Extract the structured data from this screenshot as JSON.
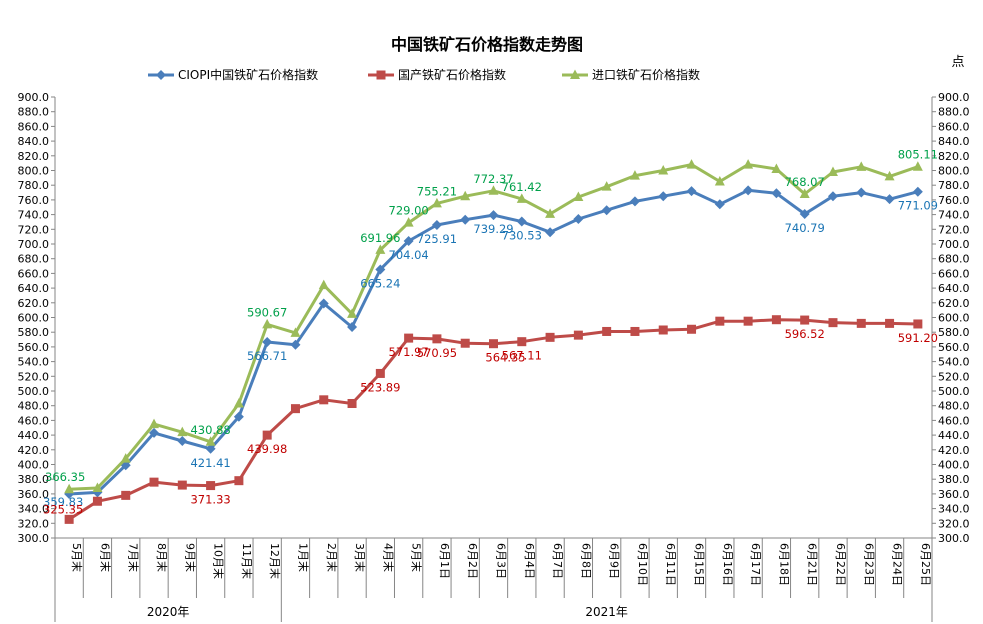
{
  "chart_data": {
    "type": "line",
    "title": "中国铁矿石价格指数走势图",
    "unit": "点",
    "ylim": [
      300,
      900
    ],
    "ytick_step": 20,
    "yticks": [
      "300.0",
      "320.0",
      "340.0",
      "360.0",
      "380.0",
      "400.0",
      "420.0",
      "440.0",
      "460.0",
      "480.0",
      "500.0",
      "520.0",
      "540.0",
      "560.0",
      "580.0",
      "600.0",
      "620.0",
      "640.0",
      "660.0",
      "680.0",
      "700.0",
      "720.0",
      "740.0",
      "760.0",
      "780.0",
      "800.0",
      "820.0",
      "840.0",
      "860.0",
      "880.0",
      "900.0"
    ],
    "categories": [
      "5月末",
      "6月末",
      "7月末",
      "8月末",
      "9月末",
      "10月末",
      "11月末",
      "12月末",
      "1月末",
      "2月末",
      "3月末",
      "4月末",
      "5月末",
      "6月1日",
      "6月2日",
      "6月3日",
      "6月4日",
      "6月7日",
      "6月8日",
      "6月9日",
      "6月10日",
      "6月11日",
      "6月15日",
      "6月16日",
      "6月17日",
      "6月18日",
      "6月21日",
      "6月22日",
      "6月23日",
      "6月24日",
      "6月25日"
    ],
    "groups": [
      {
        "label": "2020年",
        "start": 0,
        "end": 7
      },
      {
        "label": "2021年",
        "start": 8,
        "end": 30
      }
    ],
    "legend_position": "top",
    "grid": false,
    "series": [
      {
        "name": "CIOPI中国铁矿石价格指数",
        "color": "#4a7ebb",
        "marker": "diamond",
        "label_color": "#1a74b4",
        "values": [
          359.83,
          362,
          399,
          443,
          432,
          421.41,
          465,
          566.71,
          563,
          619,
          587,
          665.24,
          704.04,
          725.91,
          733,
          739.29,
          730.53,
          716,
          734,
          746,
          758,
          765,
          772,
          754,
          773,
          769,
          740.79,
          765,
          770,
          761,
          771.09
        ],
        "labels": [
          {
            "i": 0,
            "text": "359.83"
          },
          {
            "i": 5,
            "text": "421.41"
          },
          {
            "i": 7,
            "text": "566.71"
          },
          {
            "i": 11,
            "text": "665.24"
          },
          {
            "i": 12,
            "text": "704.04"
          },
          {
            "i": 13,
            "text": "725.91"
          },
          {
            "i": 15,
            "text": "739.29"
          },
          {
            "i": 16,
            "text": "730.53"
          },
          {
            "i": 26,
            "text": "740.79"
          },
          {
            "i": 30,
            "text": "771.09"
          }
        ]
      },
      {
        "name": "国产铁矿石价格指数",
        "color": "#be4b48",
        "marker": "square",
        "label_color": "#c00000",
        "values": [
          325.35,
          350,
          358,
          376,
          372,
          371.33,
          378,
          439.98,
          476,
          488,
          483,
          523.89,
          571.97,
          570.95,
          565,
          564.35,
          567.11,
          573,
          576,
          581,
          581,
          583,
          584,
          595,
          595,
          597,
          596.52,
          593,
          592,
          592,
          591.2
        ],
        "labels": [
          {
            "i": 0,
            "text": "325.35"
          },
          {
            "i": 5,
            "text": "371.33"
          },
          {
            "i": 7,
            "text": "439.98"
          },
          {
            "i": 11,
            "text": "523.89"
          },
          {
            "i": 12,
            "text": "571.97"
          },
          {
            "i": 13,
            "text": "570.95"
          },
          {
            "i": 15,
            "text": "564.35"
          },
          {
            "i": 16,
            "text": "567.11"
          },
          {
            "i": 26,
            "text": "596.52"
          },
          {
            "i": 30,
            "text": "591.20"
          }
        ]
      },
      {
        "name": "进口铁矿石价格指数",
        "color": "#9bbb59",
        "marker": "triangle",
        "label_color": "#00a04a",
        "values": [
          366.35,
          368,
          408,
          455,
          444,
          430.88,
          483,
          590.67,
          579,
          644,
          605,
          691.96,
          729.0,
          755.21,
          765,
          772.37,
          761.42,
          741,
          764,
          778,
          793,
          800,
          808,
          785,
          808,
          802,
          768.07,
          798,
          805,
          792,
          805.11
        ],
        "labels": [
          {
            "i": 0,
            "text": "366.35"
          },
          {
            "i": 5,
            "text": "430.88"
          },
          {
            "i": 7,
            "text": "590.67"
          },
          {
            "i": 11,
            "text": "691.96"
          },
          {
            "i": 12,
            "text": "729.00"
          },
          {
            "i": 13,
            "text": "755.21"
          },
          {
            "i": 15,
            "text": "772.37"
          },
          {
            "i": 16,
            "text": "761.42"
          },
          {
            "i": 26,
            "text": "768.07"
          },
          {
            "i": 30,
            "text": "805.11"
          }
        ]
      }
    ]
  }
}
